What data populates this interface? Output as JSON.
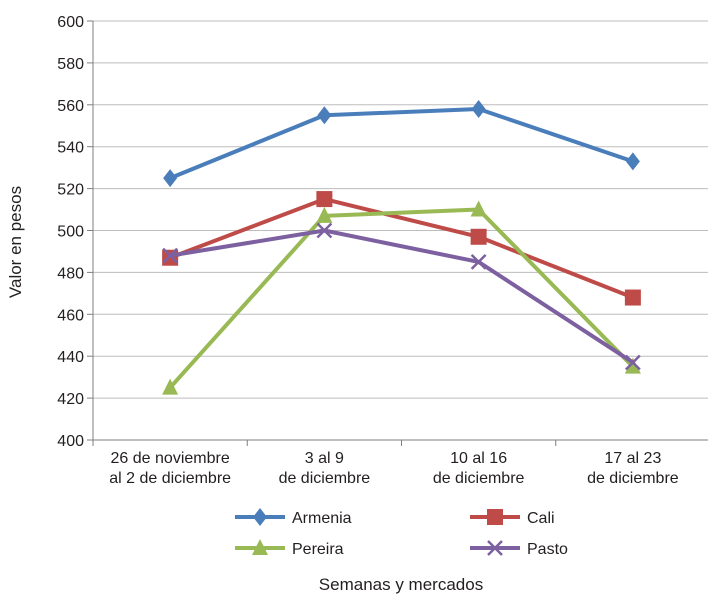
{
  "chart_data": {
    "type": "line",
    "xlabel": "Semanas y mercados",
    "ylabel": "Valor en pesos",
    "ylim": [
      400,
      600
    ],
    "yticks": [
      400,
      420,
      440,
      460,
      480,
      500,
      520,
      540,
      560,
      580,
      600
    ],
    "grid": "horizontal",
    "legend_position": "bottom",
    "categories": [
      [
        "26 de noviembre",
        "al 2 de diciembre"
      ],
      [
        "3 al 9",
        "de diciembre"
      ],
      [
        "10 al 16",
        "de diciembre"
      ],
      [
        "17 al 23",
        "de diciembre"
      ]
    ],
    "series": [
      {
        "name": "Armenia",
        "color": "#4a7ebb",
        "marker": "diamond",
        "values": [
          525,
          555,
          558,
          533
        ]
      },
      {
        "name": "Cali",
        "color": "#be4b48",
        "marker": "square",
        "values": [
          487,
          515,
          497,
          468
        ]
      },
      {
        "name": "Pereira",
        "color": "#98b954",
        "marker": "triangle",
        "values": [
          425,
          507,
          510,
          435
        ]
      },
      {
        "name": "Pasto",
        "color": "#7d60a0",
        "marker": "x",
        "values": [
          488,
          500,
          485,
          437
        ]
      }
    ]
  }
}
